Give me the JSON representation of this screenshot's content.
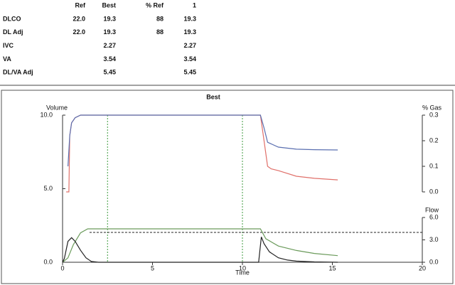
{
  "table": {
    "header": [
      "Ref",
      "Best",
      "% Ref",
      "1"
    ],
    "rows": [
      [
        "DLCO",
        "22.0",
        "19.3",
        "88",
        "19.3"
      ],
      [
        "DL Adj",
        "22.0",
        "19.3",
        "88",
        "19.3"
      ],
      [
        "IVC",
        null,
        "2.27",
        null,
        "2.27"
      ],
      [
        "VA",
        null,
        "3.54",
        null,
        "3.54"
      ],
      [
        "DL/VA Adj",
        null,
        "5.45",
        null,
        "5.45"
      ]
    ]
  },
  "chart_data": {
    "type": "line",
    "title": "Best",
    "xlabel": "Time",
    "ylabel": "Volume",
    "y2label": "% Gas",
    "y3label": "Flow",
    "xlim": [
      0,
      20
    ],
    "xticks": [
      0,
      5,
      10,
      15,
      20
    ],
    "ylim": [
      0,
      10
    ],
    "yticks": [
      {
        "value": 0,
        "label": "0.0"
      },
      {
        "value": 5,
        "label": "5.0"
      },
      {
        "value": 10,
        "label": "10.0"
      }
    ],
    "y2lim": [
      0,
      0.3
    ],
    "y2ticks": [
      {
        "value": 0,
        "label": "0.0"
      },
      0.1,
      0.2,
      0.3
    ],
    "y3lim": [
      0,
      6
    ],
    "y3ticks": [
      {
        "value": 0,
        "label": "0.0"
      },
      {
        "value": 3,
        "label": "3.0"
      },
      {
        "value": 6,
        "label": "6.0"
      }
    ],
    "vlines": [
      2.5,
      10
    ],
    "vline_color": "#3c9a3c",
    "reference_line": {
      "axis": "y3",
      "value": 4.0,
      "x_from": 1.5,
      "color": "#222222"
    },
    "series": [
      {
        "axis": "y2",
        "color": "#e0706a",
        "x": [
          0.2,
          0.35,
          0.4,
          0.5,
          0.7,
          1,
          2,
          5,
          10,
          11,
          11.2,
          11.4,
          11.6,
          12,
          13,
          14,
          15.3
        ],
        "values": [
          0.0,
          0.0,
          0.22,
          0.27,
          0.29,
          0.3,
          0.3,
          0.3,
          0.3,
          0.3,
          0.2,
          0.1,
          0.09,
          0.083,
          0.061,
          0.053,
          0.047
        ]
      },
      {
        "axis": "y2",
        "color": "#5a6fb0",
        "x": [
          0.3,
          0.4,
          0.5,
          0.7,
          1,
          2,
          5,
          10,
          11,
          11.2,
          11.4,
          12,
          13,
          14,
          15.3
        ],
        "values": [
          0.1,
          0.22,
          0.27,
          0.29,
          0.3,
          0.3,
          0.3,
          0.3,
          0.3,
          0.25,
          0.194,
          0.175,
          0.167,
          0.165,
          0.164
        ]
      },
      {
        "axis": "y",
        "color": "#6a9a5a",
        "x": [
          0,
          0.3,
          0.6,
          1,
          1.4,
          11,
          11.3,
          12,
          13,
          14,
          15.3
        ],
        "values": [
          0,
          0.3,
          1.2,
          2.0,
          2.27,
          2.27,
          1.6,
          1.1,
          0.8,
          0.6,
          0.45
        ]
      },
      {
        "axis": "y3",
        "color": "#222222",
        "x": [
          0,
          0.1,
          0.3,
          0.5,
          0.7,
          1,
          1.3,
          1.6,
          2,
          10.9,
          11.05,
          11.2,
          11.5,
          12,
          12.5,
          13,
          14,
          15.3
        ],
        "values": [
          0,
          0.5,
          2.8,
          3.3,
          2.8,
          1.6,
          0.6,
          0.1,
          0,
          0,
          3.4,
          2.5,
          1.4,
          0.6,
          0.3,
          0.15,
          0.05,
          0
        ]
      }
    ]
  }
}
